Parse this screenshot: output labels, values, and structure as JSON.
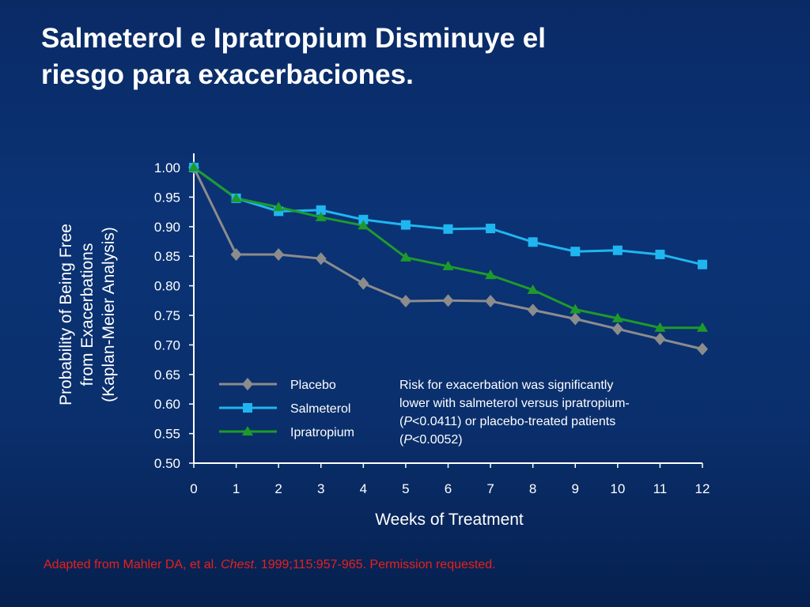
{
  "title": "Salmeterol  e Ipratropium Disminuye el\nriesgo para exacerbaciones.",
  "note": {
    "line1": "Risk for exacerbation was significantly",
    "line2": "lower with salmeterol versus ipratropium-",
    "line3_pre": "(",
    "line3_p": "P",
    "line3_post": "<0.0411) or placebo-treated patients",
    "line4_pre": "(",
    "line4_p": "P",
    "line4_post": "<0.0052)"
  },
  "source": {
    "pre": "Adapted from Mahler DA, et al. ",
    "journal": "Chest",
    "post": ". 1999;115:957-965.  Permission requested."
  },
  "colors": {
    "placebo": "#8c8c8c",
    "salmeterol": "#1fb6f0",
    "ipratropium": "#1e9a2b",
    "axis": "#ffffff",
    "source_text": "#e8201a"
  },
  "chart_data": {
    "type": "line",
    "xlabel": "Weeks of Treatment",
    "ylabel_lines": [
      "Probability of Being Free",
      "from Exacerbations",
      "(Kaplan-Meier Analysis)"
    ],
    "x": [
      0,
      1,
      2,
      3,
      4,
      5,
      6,
      7,
      8,
      9,
      10,
      11,
      12
    ],
    "xlim": [
      0,
      12
    ],
    "ylim": [
      0.5,
      1.0
    ],
    "x_ticks": [
      "0",
      "1",
      "2",
      "3",
      "4",
      "5",
      "6",
      "7",
      "8",
      "9",
      "10",
      "11",
      "12"
    ],
    "y_ticks": [
      "0.50",
      "0.55",
      "0.60",
      "0.65",
      "0.70",
      "0.75",
      "0.80",
      "0.85",
      "0.90",
      "0.95",
      "1.00"
    ],
    "grid": false,
    "legend_position": "bottom-left",
    "series": [
      {
        "name": "Placebo",
        "marker": "diamond",
        "color": "#8c8c8c",
        "values": [
          1.0,
          0.853,
          0.853,
          0.846,
          0.804,
          0.774,
          0.775,
          0.774,
          0.759,
          0.744,
          0.727,
          0.71,
          0.693
        ]
      },
      {
        "name": "Salmeterol",
        "marker": "square",
        "color": "#1fb6f0",
        "values": [
          1.0,
          0.948,
          0.926,
          0.928,
          0.912,
          0.903,
          0.896,
          0.897,
          0.874,
          0.858,
          0.86,
          0.853,
          0.836
        ]
      },
      {
        "name": "Ipratropium",
        "marker": "triangle",
        "color": "#1e9a2b",
        "values": [
          1.0,
          0.948,
          0.933,
          0.916,
          0.902,
          0.848,
          0.833,
          0.818,
          0.793,
          0.76,
          0.745,
          0.729,
          0.729
        ]
      }
    ]
  }
}
